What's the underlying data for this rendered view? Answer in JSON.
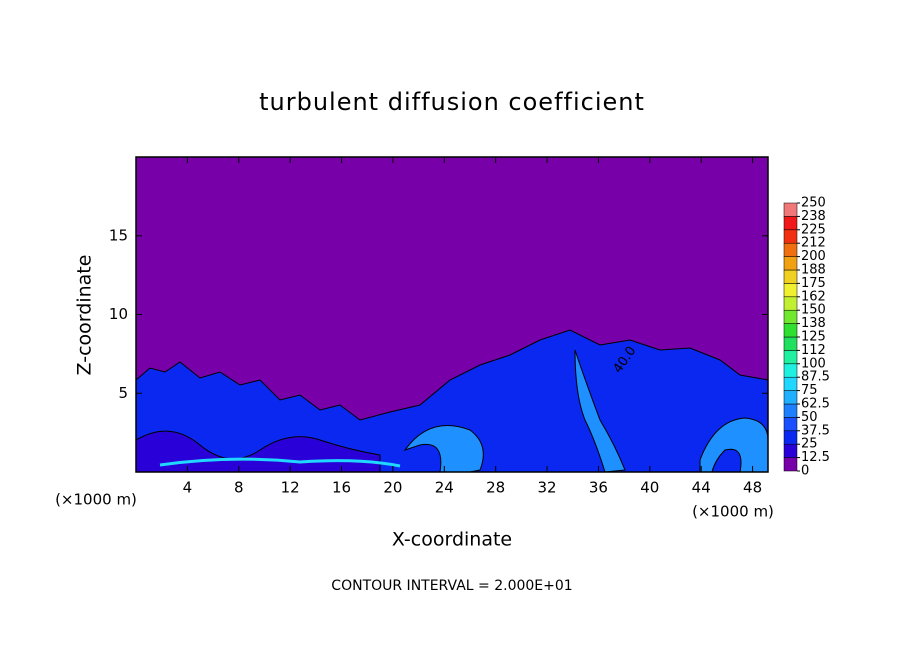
{
  "chart_data": {
    "type": "contour",
    "title": "turbulent diffusion coefficient",
    "x_label": "X-coordinate",
    "y_label": "Z-coordinate",
    "x_unit": "(×1000 m)",
    "y_unit": "(×1000 m)",
    "note": "CONTOUR INTERVAL = 2.000E+01",
    "contour_label": "40.0",
    "xlim": [
      0,
      49.2
    ],
    "xticks": [
      4,
      8,
      12,
      16,
      20,
      24,
      28,
      32,
      36,
      40,
      44,
      48
    ],
    "ylim": [
      0,
      20
    ],
    "yticks": [
      5,
      10,
      15
    ],
    "colorbar": {
      "lim": [
        0,
        250
      ],
      "ticks": [
        0,
        12.5,
        25,
        37.5,
        50,
        62.5,
        75,
        87.5,
        100,
        {
          "value": 112.5,
          "label": "112"
        },
        125,
        {
          "value": 137.5,
          "label": "138"
        },
        150,
        {
          "value": 162.5,
          "label": "162"
        },
        175,
        {
          "value": 187.5,
          "label": "188"
        },
        200,
        {
          "value": 212.5,
          "label": "212"
        },
        225,
        {
          "value": 237.5,
          "label": "238"
        },
        250
      ],
      "colors": [
        "#7800a8",
        "#2a00d8",
        "#0a28f0",
        "#1a50ff",
        "#1e80ff",
        "#20b0ff",
        "#20d8ff",
        "#20f0e0",
        "#20f0a0",
        "#20e060",
        "#30e030",
        "#70e830",
        "#c0f030",
        "#f0f030",
        "#f0d020",
        "#f0a010",
        "#f07010",
        "#f03010",
        "#f01818",
        "#f07878"
      ]
    }
  }
}
